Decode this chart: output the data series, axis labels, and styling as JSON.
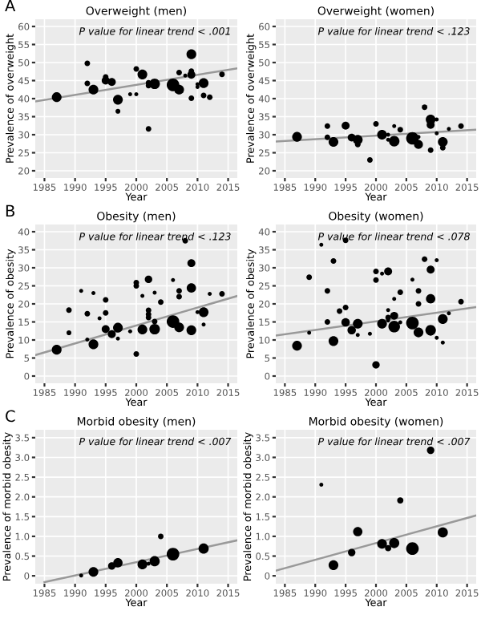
{
  "chart_data": [
    {
      "type": "bubble",
      "title": "Overweight (men)",
      "xlabel": "Year",
      "ylabel": "Prevalence of overweight",
      "annotations": [
        "A",
        "P value for linear trend < .001"
      ],
      "xlim": [
        1983.5,
        2016.5
      ],
      "xticks": [
        1985,
        1990,
        1995,
        2000,
        2005,
        2010,
        2015
      ],
      "ylim": [
        18,
        62
      ],
      "yticks": [
        20,
        25,
        30,
        35,
        40,
        45,
        50,
        55,
        60
      ],
      "grid": true,
      "series": [
        {
          "color": "#000000",
          "marker": "circle",
          "x": [
            1987,
            1992,
            1992,
            1993,
            1995,
            1995,
            1996,
            1997,
            1997,
            1999,
            2000,
            2000,
            2001,
            2002,
            2002,
            2002,
            2003,
            2006,
            2007,
            2007,
            2008,
            2009,
            2009,
            2009,
            2009,
            2010,
            2010,
            2011,
            2011,
            2012,
            2014
          ],
          "values": [
            40.4,
            49.8,
            44.2,
            42.5,
            46,
            45,
            44.6,
            39.7,
            36.5,
            41.2,
            41.2,
            48.2,
            46.7,
            44.4,
            43.6,
            31.6,
            44.1,
            43.8,
            42.5,
            47.2,
            46.4,
            52.3,
            47.6,
            46.6,
            40.1,
            44,
            43.2,
            44.3,
            40.9,
            40.4,
            46.7
          ],
          "sizes": [
            0.6,
            0.2,
            0.2,
            0.6,
            0.2,
            0.4,
            0.4,
            0.6,
            0.15,
            0.1,
            0.1,
            0.2,
            0.6,
            0.2,
            0.2,
            0.2,
            0.7,
            1,
            0.6,
            0.2,
            0.1,
            0.6,
            0.2,
            0.4,
            0.2,
            0.1,
            0.1,
            0.6,
            0.2,
            0.2,
            0.2
          ]
        },
        {
          "type": "line",
          "color": "#999999",
          "x": [
            1983.5,
            2016.5
          ],
          "values": [
            39.2,
            48.4
          ]
        }
      ]
    },
    {
      "type": "bubble",
      "title": "Overweight (women)",
      "xlabel": "Year",
      "ylabel": "Prevalence of overweight",
      "annotations": [
        "P value for linear trend < .123"
      ],
      "xlim": [
        1983.5,
        2016.5
      ],
      "xticks": [
        1985,
        1990,
        1995,
        2000,
        2005,
        2010,
        2015
      ],
      "ylim": [
        18,
        62
      ],
      "yticks": [
        20,
        25,
        30,
        35,
        40,
        45,
        50,
        55,
        60
      ],
      "grid": true,
      "series": [
        {
          "color": "#000000",
          "marker": "circle",
          "x": [
            1987,
            1992,
            1992,
            1993,
            1995,
            1996,
            1997,
            1997,
            1999,
            2000,
            2001,
            2002,
            2002,
            2003,
            2003,
            2004,
            2006,
            2007,
            2007,
            2008,
            2009,
            2009,
            2009,
            2010,
            2010,
            2011,
            2011,
            2012,
            2014
          ],
          "values": [
            29.4,
            32.4,
            29.3,
            28,
            32.5,
            29.2,
            28.6,
            27.3,
            23,
            33,
            30,
            30,
            28.6,
            32.4,
            28.2,
            31.4,
            29,
            27.3,
            29.4,
            37.6,
            34.2,
            32.7,
            25.7,
            34.2,
            30.4,
            28,
            26.4,
            31.6,
            32.4
          ],
          "sizes": [
            0.6,
            0.2,
            0.2,
            0.6,
            0.4,
            0.4,
            0.6,
            0.2,
            0.2,
            0.2,
            0.6,
            0.1,
            0.1,
            0.1,
            0.7,
            0.2,
            1,
            0.5,
            0.1,
            0.2,
            0.6,
            0.4,
            0.2,
            0.1,
            0.1,
            0.6,
            0.2,
            0.1,
            0.2
          ]
        },
        {
          "type": "line",
          "color": "#999999",
          "x": [
            1983.5,
            2016.5
          ],
          "values": [
            28.1,
            31.4
          ]
        }
      ]
    },
    {
      "type": "bubble",
      "title": "Obesity (men)",
      "xlabel": "Year",
      "ylabel": "Prevalence of obesity",
      "annotations": [
        "B",
        "P value for linear trend < .123"
      ],
      "xlim": [
        1983.5,
        2016.5
      ],
      "xticks": [
        1985,
        1990,
        1995,
        2000,
        2005,
        2010,
        2015
      ],
      "ylim": [
        -2,
        42
      ],
      "yticks": [
        0,
        5,
        10,
        15,
        20,
        25,
        30,
        35,
        40
      ],
      "grid": true,
      "series": [
        {
          "color": "#000000",
          "marker": "circle",
          "x": [
            1987,
            1989,
            1989,
            1991,
            1992,
            1992,
            1993,
            1993,
            1994,
            1995,
            1995,
            1995,
            1996,
            1997,
            1997,
            1999,
            2000,
            2000,
            2000,
            2001,
            2001,
            2002,
            2002,
            2002,
            2002,
            2003,
            2003,
            2003,
            2004,
            2006,
            2006,
            2007,
            2007,
            2007,
            2008,
            2009,
            2009,
            2009,
            2010,
            2011,
            2011,
            2012,
            2014
          ],
          "values": [
            7.3,
            12,
            18.3,
            23.6,
            17.3,
            10.1,
            23,
            8.8,
            16,
            21.1,
            17.5,
            13,
            11.6,
            13.4,
            10.4,
            12.4,
            25.9,
            25,
            6.1,
            22.2,
            12.9,
            26.8,
            18.2,
            17.1,
            16.2,
            23.1,
            15.1,
            13,
            20.5,
            26.6,
            15.1,
            23.6,
            22,
            13.5,
            37.5,
            31.3,
            24.4,
            12.7,
            17.7,
            17.7,
            14.3,
            22.8,
            22.8
          ],
          "sizes": [
            0.6,
            0.15,
            0.2,
            0.1,
            0.2,
            0.1,
            0.1,
            0.6,
            0.1,
            0.2,
            0.2,
            0.4,
            0.4,
            0.6,
            0.1,
            0.1,
            0.2,
            0.2,
            0.2,
            0.1,
            0.6,
            0.35,
            0.2,
            0.2,
            0.2,
            0.1,
            0.2,
            0.7,
            0.2,
            0.1,
            1,
            0.2,
            0.2,
            0.6,
            0.2,
            0.4,
            0.55,
            0.6,
            0.1,
            0.6,
            0.1,
            0.1,
            0.2
          ]
        },
        {
          "type": "line",
          "color": "#999999",
          "x": [
            1983.5,
            2016.5
          ],
          "values": [
            5.8,
            22.2
          ]
        }
      ]
    },
    {
      "type": "bubble",
      "title": "Obesity (women)",
      "xlabel": "Year",
      "ylabel": "Prevalence of obesity",
      "annotations": [
        "P value for linear trend < .078"
      ],
      "xlim": [
        1983.5,
        2016.5
      ],
      "xticks": [
        1985,
        1990,
        1995,
        2000,
        2005,
        2010,
        2015
      ],
      "ylim": [
        -2,
        42
      ],
      "yticks": [
        0,
        5,
        10,
        15,
        20,
        25,
        30,
        35,
        40
      ],
      "grid": true,
      "series": [
        {
          "color": "#000000",
          "marker": "circle",
          "x": [
            1987,
            1989,
            1989,
            1991,
            1992,
            1992,
            1993,
            1993,
            1994,
            1995,
            1995,
            1995,
            1996,
            1997,
            1997,
            1999,
            2000,
            2000,
            2000,
            2001,
            2001,
            2002,
            2002,
            2002,
            2002,
            2003,
            2003,
            2003,
            2004,
            2004,
            2006,
            2006,
            2007,
            2007,
            2007,
            2008,
            2009,
            2009,
            2009,
            2009,
            2010,
            2010,
            2011,
            2011,
            2012,
            2014
          ],
          "values": [
            8.4,
            27.4,
            12,
            36.4,
            23.6,
            15,
            31.9,
            9.7,
            18,
            37.6,
            19,
            14.9,
            12.7,
            14.5,
            11.4,
            11.7,
            29,
            26.6,
            3.1,
            28.4,
            14.5,
            29,
            18.3,
            16.2,
            15.4,
            21.4,
            16.7,
            13.7,
            23.2,
            14.9,
            26.7,
            14.7,
            23.6,
            20,
            12.1,
            32.4,
            29.5,
            21.4,
            12.7,
            12,
            32.1,
            10.6,
            15.8,
            9.3,
            17.4,
            20.6
          ],
          "sizes": [
            0.6,
            0.2,
            0.1,
            0.1,
            0.2,
            0.2,
            0.2,
            0.6,
            0.2,
            0.2,
            0.2,
            0.45,
            0.45,
            0.6,
            0.1,
            0.1,
            0.2,
            0.2,
            0.35,
            0.1,
            0.6,
            0.4,
            0.1,
            0.2,
            0.1,
            0.1,
            0.4,
            0.85,
            0.2,
            0.1,
            0.1,
            1,
            0.2,
            0.2,
            0.6,
            0.2,
            0.4,
            0.55,
            0.7,
            0.2,
            0.1,
            0.1,
            0.6,
            0.1,
            0.1,
            0.2
          ]
        },
        {
          "type": "line",
          "color": "#999999",
          "x": [
            1983.5,
            2016.5
          ],
          "values": [
            11.2,
            19.1
          ]
        }
      ]
    },
    {
      "type": "bubble",
      "title": "Morbid obesity (men)",
      "xlabel": "Year",
      "ylabel": "Prevalence of morbid obesity",
      "annotations": [
        "C",
        "P value for linear trend < .007"
      ],
      "xlim": [
        1983.5,
        2016.5
      ],
      "xticks": [
        1985,
        1990,
        1995,
        2000,
        2005,
        2010,
        2015
      ],
      "ylim": [
        -0.2,
        3.7
      ],
      "yticks": [
        0,
        0.5,
        {
          "value": 1,
          "label": "1.0"
        },
        1.5,
        {
          "value": 2,
          "label": "2.0"
        },
        2.5,
        {
          "value": 3,
          "label": "3.0"
        },
        3.5
      ],
      "grid": true,
      "series": [
        {
          "color": "#000000",
          "marker": "circle",
          "x": [
            1991,
            1993,
            1996,
            1997,
            2001,
            2002,
            2003,
            2004,
            2006,
            2011
          ],
          "values": [
            0.01,
            0.1,
            0.25,
            0.33,
            0.29,
            0.31,
            0.37,
            1.0,
            0.55,
            0.69
          ],
          "sizes": [
            0.1,
            0.6,
            0.35,
            0.55,
            0.6,
            0.1,
            0.65,
            0.2,
            1,
            0.65
          ]
        },
        {
          "type": "line",
          "color": "#999999",
          "x": [
            1985,
            2016.5
          ],
          "values": [
            -0.16,
            0.9
          ]
        }
      ]
    },
    {
      "type": "bubble",
      "title": "Morbid obesity (women)",
      "xlabel": "Year",
      "ylabel": "Prevalence of morbid obesity",
      "annotations": [
        "P value for linear trend < .007"
      ],
      "xlim": [
        1983.5,
        2016.5
      ],
      "xticks": [
        1985,
        1990,
        1995,
        2000,
        2005,
        2010,
        2015
      ],
      "ylim": [
        -0.2,
        3.7
      ],
      "yticks": [
        0,
        0.5,
        {
          "value": 1,
          "label": "1.0"
        },
        1.5,
        {
          "value": 2,
          "label": "2.0"
        },
        2.5,
        {
          "value": 3,
          "label": "3.0"
        },
        3.5
      ],
      "grid": true,
      "series": [
        {
          "color": "#000000",
          "marker": "circle",
          "x": [
            1991,
            1993,
            1996,
            1997,
            2001,
            2002,
            2003,
            2004,
            2006,
            2009,
            2011
          ],
          "values": [
            2.31,
            0.27,
            0.59,
            1.12,
            0.81,
            0.7,
            0.83,
            1.91,
            0.69,
            3.18,
            1.1
          ],
          "sizes": [
            0.1,
            0.6,
            0.35,
            0.55,
            0.6,
            0.25,
            0.65,
            0.25,
            1,
            0.35,
            0.65
          ]
        },
        {
          "type": "line",
          "color": "#999999",
          "x": [
            1983.5,
            2016.5
          ],
          "values": [
            0.13,
            1.53
          ]
        }
      ]
    }
  ]
}
